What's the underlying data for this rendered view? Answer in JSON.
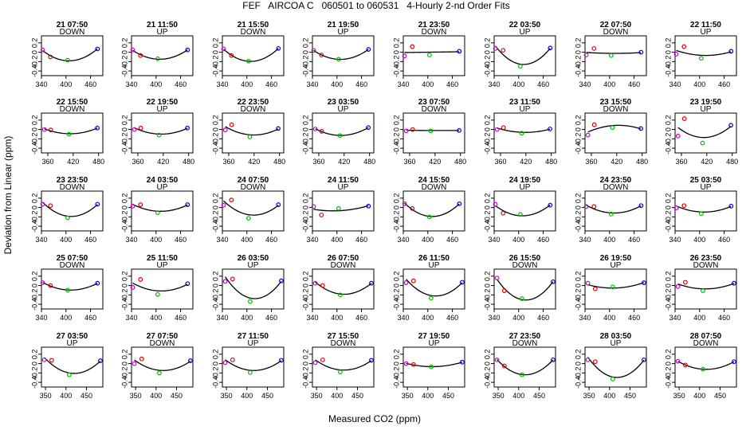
{
  "chart_data": {
    "type": "scatter",
    "title": "FEF   AIRCOA C   060501 to 060531   4-Hourly 2-nd Order Fits",
    "xlabel": "Measured CO2 (ppm)",
    "ylabel": "Deviation from Linear (ppm)",
    "ylim": [
      -0.5,
      0.35
    ],
    "yticks": [
      -0.4,
      -0.2,
      0,
      0.2
    ],
    "ytick_labels": [
      "-0.4",
      "-0.2",
      "0",
      "0.2"
    ],
    "colors": {
      "p1": "#cc00cc",
      "p2": "#dd0000",
      "p3": "#00bb00",
      "p4": "#0000cc",
      "curve": "#000000"
    },
    "rows": [
      {
        "xlim": [
          340,
          490
        ],
        "xticks": [
          340,
          400,
          460
        ],
        "xtick_labels": [
          "340",
          "400",
          "460"
        ]
      },
      {
        "xlim": [
          345,
          490
        ],
        "xticks": [
          360,
          420,
          480
        ],
        "xtick_labels": [
          "360",
          "420",
          "480"
        ]
      },
      {
        "xlim": [
          340,
          490
        ],
        "xticks": [
          340,
          400,
          460
        ],
        "xtick_labels": [
          "340",
          "400",
          "460"
        ]
      },
      {
        "xlim": [
          340,
          490
        ],
        "xticks": [
          340,
          400,
          460
        ],
        "xtick_labels": [
          "340",
          "400",
          "460"
        ]
      },
      {
        "xlim": [
          340,
          490
        ],
        "xticks": [
          350,
          400,
          450
        ],
        "xtick_labels": [
          "350",
          "400",
          "450"
        ]
      }
    ],
    "panels": [
      {
        "title": "21 07:50",
        "dir": "DOWN",
        "x": [
          343,
          362,
          404,
          477
        ],
        "y": [
          0.05,
          -0.1,
          -0.17,
          0.07
        ]
      },
      {
        "title": "21 11:50",
        "dir": "UP",
        "x": [
          343,
          362,
          404,
          477
        ],
        "y": [
          0.05,
          -0.07,
          -0.14,
          0.05
        ]
      },
      {
        "title": "21 15:50",
        "dir": "DOWN",
        "x": [
          343,
          362,
          404,
          477
        ],
        "y": [
          0.07,
          -0.07,
          -0.19,
          0.08
        ]
      },
      {
        "title": "21 19:50",
        "dir": "UP",
        "x": [
          343,
          362,
          404,
          477
        ],
        "y": [
          0.04,
          -0.06,
          -0.15,
          0.06
        ]
      },
      {
        "title": "21 23:50",
        "dir": "DOWN",
        "x": [
          343,
          362,
          404,
          477
        ],
        "y": [
          -0.08,
          0.12,
          -0.06,
          0.02
        ]
      },
      {
        "title": "22 03:50",
        "dir": "UP",
        "x": [
          343,
          362,
          404,
          477
        ],
        "y": [
          0.08,
          0.04,
          -0.3,
          0.09
        ]
      },
      {
        "title": "22 07:50",
        "dir": "DOWN",
        "x": [
          343,
          362,
          404,
          477
        ],
        "y": [
          -0.06,
          0.08,
          -0.07,
          0.0
        ]
      },
      {
        "title": "22 11:50",
        "dir": "UP",
        "x": [
          343,
          362,
          404,
          477
        ],
        "y": [
          -0.04,
          0.12,
          -0.13,
          0.02
        ]
      },
      {
        "title": "22 15:50",
        "dir": "DOWN",
        "x": [
          352,
          367,
          410,
          477
        ],
        "y": [
          0.0,
          -0.01,
          -0.1,
          0.03
        ]
      },
      {
        "title": "22 19:50",
        "dir": "UP",
        "x": [
          352,
          367,
          410,
          477
        ],
        "y": [
          0.0,
          0.03,
          -0.12,
          0.03
        ]
      },
      {
        "title": "22 23:50",
        "dir": "DOWN",
        "x": [
          352,
          367,
          410,
          477
        ],
        "y": [
          -0.01,
          0.1,
          -0.16,
          0.02
        ]
      },
      {
        "title": "23 03:50",
        "dir": "UP",
        "x": [
          352,
          367,
          410,
          477
        ],
        "y": [
          0.01,
          -0.04,
          -0.13,
          0.04
        ]
      },
      {
        "title": "23 07:50",
        "dir": "DOWN",
        "x": [
          352,
          367,
          410,
          477
        ],
        "y": [
          -0.03,
          0.0,
          -0.03,
          -0.02
        ]
      },
      {
        "title": "23 11:50",
        "dir": "UP",
        "x": [
          352,
          367,
          410,
          477
        ],
        "y": [
          0.0,
          0.04,
          -0.08,
          0.01
        ]
      },
      {
        "title": "23 15:50",
        "dir": "DOWN",
        "x": [
          352,
          367,
          410,
          477
        ],
        "y": [
          -0.12,
          0.1,
          0.04,
          0.02
        ]
      },
      {
        "title": "23 19:50",
        "dir": "UP",
        "x": [
          352,
          367,
          410,
          477
        ],
        "y": [
          -0.14,
          0.23,
          -0.29,
          0.09
        ]
      },
      {
        "title": "23 23:50",
        "dir": "DOWN",
        "x": [
          343,
          362,
          404,
          477
        ],
        "y": [
          0.07,
          0.04,
          -0.22,
          0.07
        ]
      },
      {
        "title": "24 03:50",
        "dir": "UP",
        "x": [
          343,
          362,
          404,
          477
        ],
        "y": [
          0.03,
          0.06,
          -0.11,
          0.06
        ]
      },
      {
        "title": "24 07:50",
        "dir": "DOWN",
        "x": [
          343,
          362,
          404,
          477
        ],
        "y": [
          0.05,
          0.16,
          -0.23,
          0.06
        ]
      },
      {
        "title": "24 11:50",
        "dir": "UP",
        "x": [
          343,
          362,
          404,
          477
        ],
        "y": [
          0.02,
          -0.16,
          -0.02,
          0.03
        ]
      },
      {
        "title": "24 15:50",
        "dir": "DOWN",
        "x": [
          343,
          362,
          404,
          477
        ],
        "y": [
          0.08,
          -0.02,
          -0.2,
          0.08
        ]
      },
      {
        "title": "24 19:50",
        "dir": "UP",
        "x": [
          343,
          362,
          404,
          477
        ],
        "y": [
          0.07,
          -0.12,
          -0.15,
          0.05
        ]
      },
      {
        "title": "24 23:50",
        "dir": "DOWN",
        "x": [
          343,
          362,
          404,
          477
        ],
        "y": [
          0.02,
          0.02,
          -0.14,
          0.04
        ]
      },
      {
        "title": "25 03:50",
        "dir": "UP",
        "x": [
          343,
          362,
          404,
          477
        ],
        "y": [
          -0.01,
          0.04,
          -0.13,
          0.03
        ]
      },
      {
        "title": "25 07:50",
        "dir": "DOWN",
        "x": [
          343,
          362,
          404,
          477
        ],
        "y": [
          0.06,
          0.0,
          -0.1,
          0.05
        ]
      },
      {
        "title": "25 11:50",
        "dir": "UP",
        "x": [
          343,
          362,
          404,
          477
        ],
        "y": [
          -0.04,
          0.13,
          -0.19,
          0.04
        ]
      },
      {
        "title": "26 03:50",
        "dir": "UP",
        "x": [
          347,
          365,
          408,
          484
        ],
        "y": [
          0.09,
          0.14,
          -0.34,
          0.1
        ]
      },
      {
        "title": "26 07:50",
        "dir": "DOWN",
        "x": [
          347,
          365,
          408,
          484
        ],
        "y": [
          0.05,
          0.0,
          -0.2,
          0.05
        ]
      },
      {
        "title": "26 11:50",
        "dir": "UP",
        "x": [
          347,
          365,
          408,
          484
        ],
        "y": [
          0.06,
          0.1,
          -0.27,
          0.07
        ]
      },
      {
        "title": "26 15:50",
        "dir": "DOWN",
        "x": [
          347,
          365,
          408,
          484
        ],
        "y": [
          0.16,
          -0.11,
          -0.28,
          0.08
        ]
      },
      {
        "title": "26 19:50",
        "dir": "UP",
        "x": [
          347,
          365,
          408,
          484
        ],
        "y": [
          0.05,
          -0.07,
          -0.03,
          0.06
        ]
      },
      {
        "title": "26 23:50",
        "dir": "DOWN",
        "x": [
          347,
          365,
          408,
          484
        ],
        "y": [
          -0.02,
          0.07,
          -0.11,
          0.05
        ]
      },
      {
        "title": "27 03:50",
        "dir": "UP",
        "x": [
          347,
          365,
          408,
          484
        ],
        "y": [
          0.08,
          0.07,
          -0.24,
          0.06
        ]
      },
      {
        "title": "27 07:50",
        "dir": "DOWN",
        "x": [
          347,
          365,
          408,
          484
        ],
        "y": [
          0.0,
          0.1,
          -0.2,
          0.06
        ]
      },
      {
        "title": "27 11:50",
        "dir": "UP",
        "x": [
          347,
          365,
          408,
          484
        ],
        "y": [
          0.02,
          0.08,
          -0.19,
          0.07
        ]
      },
      {
        "title": "27 15:50",
        "dir": "DOWN",
        "x": [
          347,
          365,
          408,
          484
        ],
        "y": [
          0.02,
          0.08,
          -0.18,
          0.07
        ]
      },
      {
        "title": "27 19:50",
        "dir": "UP",
        "x": [
          347,
          365,
          408,
          484
        ],
        "y": [
          0.0,
          -0.02,
          -0.07,
          0.03
        ]
      },
      {
        "title": "27 23:50",
        "dir": "DOWN",
        "x": [
          347,
          365,
          408,
          484
        ],
        "y": [
          0.08,
          -0.05,
          -0.24,
          0.08
        ]
      },
      {
        "title": "28 03:50",
        "dir": "UP",
        "x": [
          347,
          365,
          408,
          484
        ],
        "y": [
          0.08,
          0.04,
          -0.33,
          0.08
        ]
      },
      {
        "title": "28 07:50",
        "dir": "DOWN",
        "x": [
          347,
          365,
          408,
          484
        ],
        "y": [
          0.05,
          -0.03,
          -0.12,
          0.04
        ]
      }
    ]
  }
}
